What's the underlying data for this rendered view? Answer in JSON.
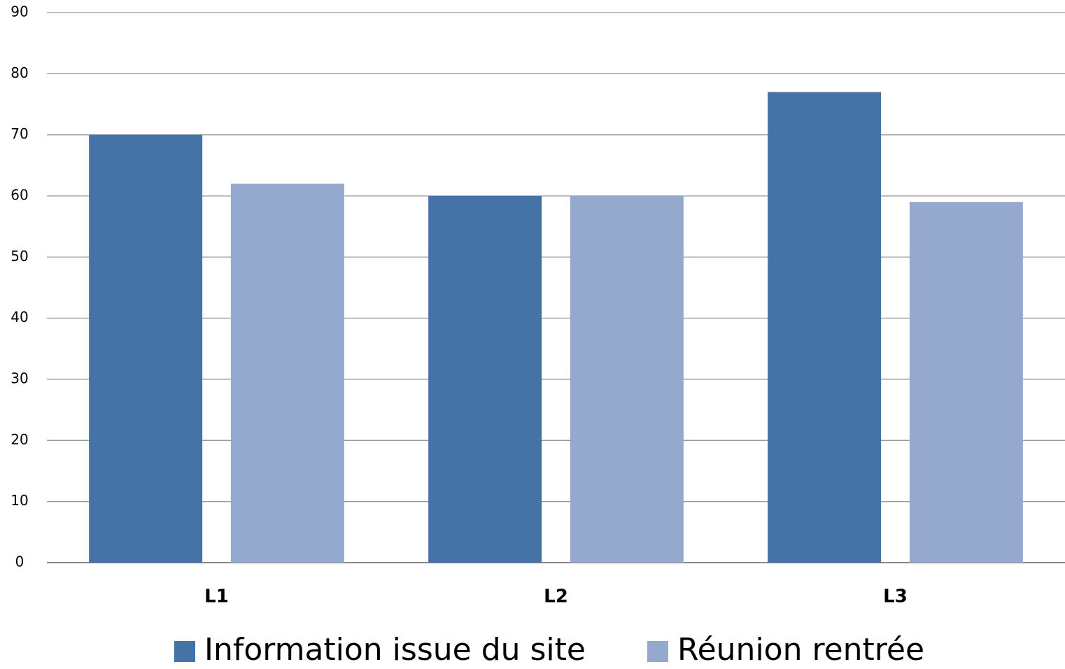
{
  "chart_data": {
    "type": "bar",
    "categories": [
      "L1",
      "L2",
      "L3"
    ],
    "series": [
      {
        "name": "Information issue du site",
        "color": "#4673a6",
        "values": [
          70,
          60,
          77
        ]
      },
      {
        "name": "Réunion rentrée",
        "color": "#95a9cf",
        "values": [
          62,
          60,
          59
        ]
      }
    ],
    "ylim": [
      0,
      90
    ],
    "yticks": [
      0,
      10,
      20,
      30,
      40,
      50,
      60,
      70,
      80,
      90
    ],
    "grid": true,
    "legend": "bottom"
  }
}
